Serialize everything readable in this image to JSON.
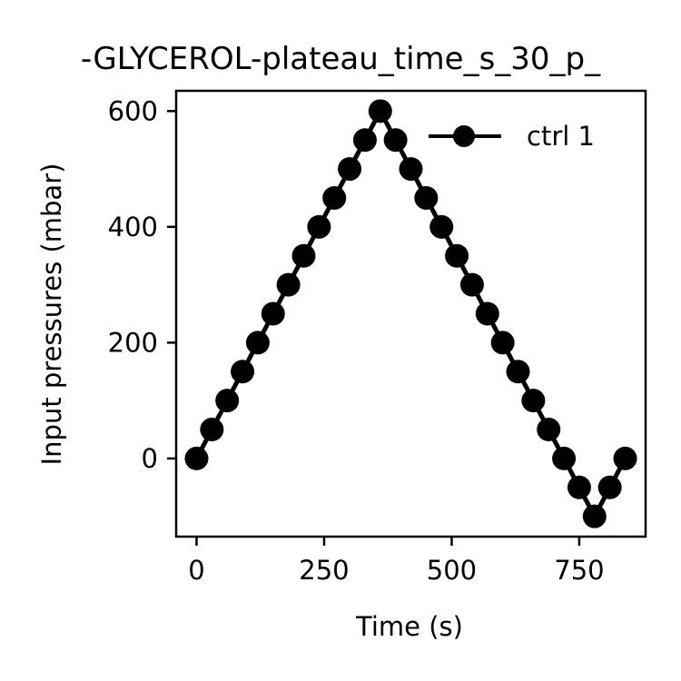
{
  "chart_data": {
    "type": "line",
    "title": "-GLYCEROL-plateau_time_s_30_p_",
    "xlabel": "Time (s)",
    "ylabel": "Input pressures (mbar)",
    "xlim": [
      -40,
      880
    ],
    "ylim": [
      -135,
      635
    ],
    "xticks": [
      0,
      250,
      500,
      750
    ],
    "xtick_labels": [
      "0",
      "250",
      "500",
      "750"
    ],
    "yticks": [
      0,
      200,
      400,
      600
    ],
    "ytick_labels": [
      "0",
      "200",
      "400",
      "600"
    ],
    "grid": false,
    "legend_position": "top-right",
    "colors": {
      "line": "#000000",
      "marker": "#000000",
      "frame": "#000000"
    },
    "series": [
      {
        "name": "ctrl 1",
        "marker": "circle",
        "x": [
          0,
          30,
          60,
          90,
          120,
          150,
          180,
          210,
          240,
          270,
          300,
          330,
          360,
          390,
          420,
          450,
          480,
          510,
          540,
          570,
          600,
          630,
          660,
          690,
          720,
          750,
          780,
          810,
          840
        ],
        "y": [
          0,
          50,
          100,
          150,
          200,
          250,
          300,
          350,
          400,
          450,
          500,
          550,
          600,
          550,
          500,
          450,
          400,
          350,
          300,
          250,
          200,
          150,
          100,
          50,
          0,
          -50,
          -100,
          -50,
          0
        ]
      }
    ]
  }
}
